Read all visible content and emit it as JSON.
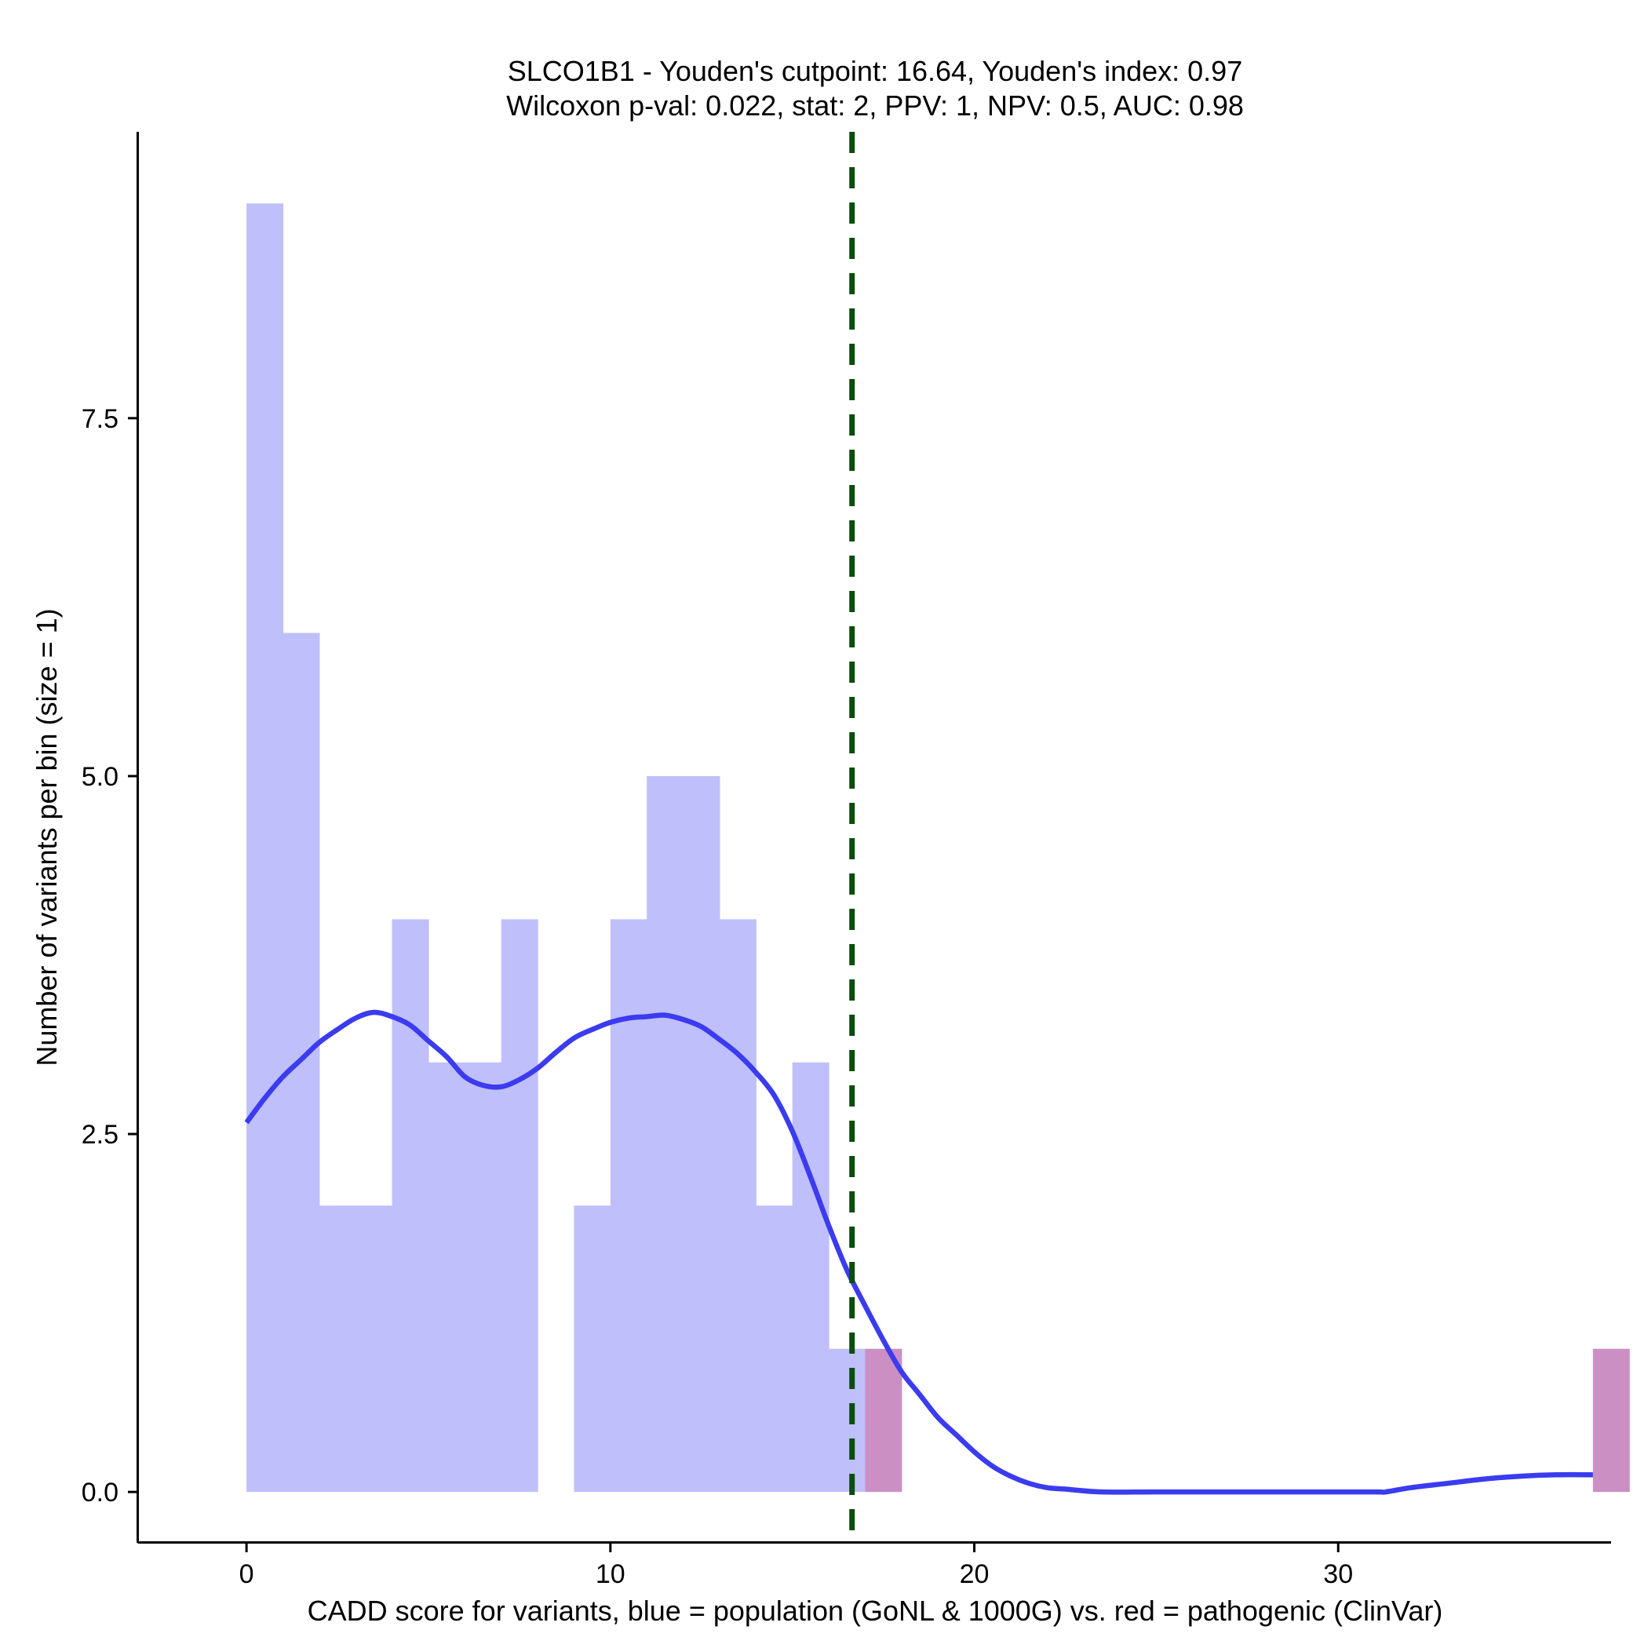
{
  "chart_data": {
    "type": "bar",
    "title_lines": [
      "SLCO1B1 - Youden's cutpoint: 16.64, Youden's index: 0.97",
      "Wilcoxon p-val: 0.022, stat: 2, PPV: 1, NPV: 0.5, AUC: 0.98"
    ],
    "xlabel": "CADD score for variants, blue = population (GoNL & 1000G) vs. red = pathogenic (ClinVar)",
    "ylabel": "Number of variants per bin (size = 1)",
    "xlim": [
      -3,
      37.5
    ],
    "ylim": [
      -0.35,
      9.5
    ],
    "x_ticks": [
      0,
      10,
      20,
      30
    ],
    "x_tick_labels": [
      "0",
      "10",
      "20",
      "30"
    ],
    "y_ticks": [
      0,
      2.5,
      5,
      7.5
    ],
    "y_tick_labels": [
      "0.0",
      "2.5",
      "5.0",
      "7.5"
    ],
    "bin_width": 1,
    "series": [
      {
        "name": "population (GoNL & 1000G)",
        "color": "#bfbffb",
        "bins": [
          {
            "x": 0,
            "count": 9
          },
          {
            "x": 1,
            "count": 6
          },
          {
            "x": 2,
            "count": 2
          },
          {
            "x": 3,
            "count": 2
          },
          {
            "x": 4,
            "count": 4
          },
          {
            "x": 5,
            "count": 3
          },
          {
            "x": 6,
            "count": 3
          },
          {
            "x": 7,
            "count": 4
          },
          {
            "x": 9,
            "count": 2
          },
          {
            "x": 10,
            "count": 4
          },
          {
            "x": 11,
            "count": 5
          },
          {
            "x": 12,
            "count": 5
          },
          {
            "x": 13,
            "count": 4
          },
          {
            "x": 14,
            "count": 2
          },
          {
            "x": 15,
            "count": 3
          },
          {
            "x": 16,
            "count": 1
          }
        ]
      },
      {
        "name": "pathogenic (ClinVar)",
        "color": "#cc8fc3",
        "bins": [
          {
            "x": 17,
            "count": 1
          },
          {
            "x": 37,
            "count": 1
          }
        ]
      }
    ],
    "density": {
      "color": "#3b3bf0",
      "points": [
        [
          0.0,
          2.58
        ],
        [
          0.5,
          2.75
        ],
        [
          1.0,
          2.9
        ],
        [
          1.5,
          3.02
        ],
        [
          2.0,
          3.14
        ],
        [
          2.5,
          3.23
        ],
        [
          3.0,
          3.31
        ],
        [
          3.5,
          3.35
        ],
        [
          4.0,
          3.32
        ],
        [
          4.5,
          3.26
        ],
        [
          5.0,
          3.15
        ],
        [
          5.5,
          3.04
        ],
        [
          6.0,
          2.9
        ],
        [
          6.5,
          2.84
        ],
        [
          7.0,
          2.83
        ],
        [
          7.5,
          2.88
        ],
        [
          8.0,
          2.96
        ],
        [
          8.5,
          3.07
        ],
        [
          9.0,
          3.17
        ],
        [
          9.5,
          3.23
        ],
        [
          10.0,
          3.28
        ],
        [
          10.5,
          3.31
        ],
        [
          11.0,
          3.32
        ],
        [
          11.5,
          3.33
        ],
        [
          12.0,
          3.3
        ],
        [
          12.5,
          3.25
        ],
        [
          13.0,
          3.16
        ],
        [
          13.5,
          3.06
        ],
        [
          14.0,
          2.93
        ],
        [
          14.5,
          2.77
        ],
        [
          15.0,
          2.52
        ],
        [
          15.5,
          2.2
        ],
        [
          16.0,
          1.86
        ],
        [
          16.5,
          1.55
        ],
        [
          17.0,
          1.3
        ],
        [
          17.5,
          1.06
        ],
        [
          18.0,
          0.84
        ],
        [
          18.5,
          0.68
        ],
        [
          19.0,
          0.52
        ],
        [
          19.5,
          0.4
        ],
        [
          20.0,
          0.28
        ],
        [
          20.5,
          0.18
        ],
        [
          21.0,
          0.11
        ],
        [
          21.5,
          0.06
        ],
        [
          22.0,
          0.03
        ],
        [
          22.5,
          0.02
        ],
        [
          23.5,
          0.0
        ],
        [
          25.0,
          0.0
        ],
        [
          27.0,
          0.0
        ],
        [
          29.0,
          0.0
        ],
        [
          31.0,
          0.0
        ],
        [
          31.3,
          0.0
        ],
        [
          32.0,
          0.03
        ],
        [
          33.0,
          0.06
        ],
        [
          34.0,
          0.09
        ],
        [
          35.0,
          0.11
        ],
        [
          36.0,
          0.12
        ],
        [
          37.0,
          0.12
        ]
      ]
    },
    "cutpoint": {
      "x": 16.64,
      "color": "#0b4d0b",
      "style": "dashed"
    },
    "grid": false,
    "legend": "none"
  }
}
